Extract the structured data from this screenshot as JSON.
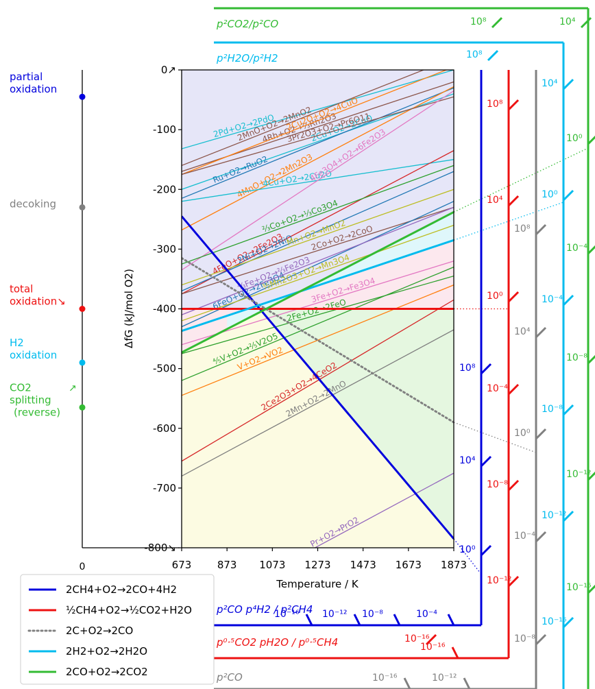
{
  "chart_data": {
    "type": "line",
    "xlabel": "Temperature / K",
    "ylabel": "ΔfG (kJ/mol O2)",
    "xlim": [
      673,
      1873
    ],
    "ylim": [
      -800,
      0
    ],
    "x_ticks": [
      "673",
      "873",
      "1073",
      "1273",
      "1473",
      "1673",
      "1873"
    ],
    "y_ticks": [
      "0↗",
      "-100",
      "-200",
      "-300",
      "-400",
      "-500",
      "-600",
      "-700",
      "-800↘"
    ],
    "grid": false,
    "colors": {
      "blue": "#0000dd",
      "red": "#ee1111",
      "gray": "#808080",
      "cyan": "#00bbee",
      "green": "#33bb33",
      "region_top": "#e6e6f8",
      "region_pink": "#fce8ee",
      "region_cyan": "#dff7fb",
      "region_green": "#e5f7e0",
      "region_yellow": "#fcfbe2"
    },
    "left_axis": {
      "labels": [
        {
          "text": "partial",
          "text2": "oxidation",
          "color": "#0000dd"
        },
        {
          "text": "decoking",
          "text2": "",
          "color": "#808080"
        },
        {
          "text": "total",
          "text2": "oxidation↘",
          "color": "#ee1111"
        },
        {
          "text": "H2",
          "text2": "oxidation",
          "color": "#00bbee"
        },
        {
          "text": "CO2",
          "text2": "splitting",
          "text3": "(reverse)",
          "color": "#33bb33",
          "arrow": "↗"
        }
      ],
      "zero_label": "0"
    },
    "series": [
      {
        "name": "2CH4+O2→2CO+4H2",
        "color": "#0000dd",
        "style": "solid",
        "x": [
          673,
          1873
        ],
        "y": [
          -245,
          -785
        ]
      },
      {
        "name": "½CH4+O2→½CO2+H2O",
        "color": "#ee1111",
        "style": "solid",
        "x": [
          673,
          1873
        ],
        "y": [
          -400,
          -400
        ]
      },
      {
        "name": "2C+O2→2CO",
        "color": "#808080",
        "style": "dotted",
        "x": [
          673,
          1873
        ],
        "y": [
          -315,
          -590
        ]
      },
      {
        "name": "2H2+O2→2H2O",
        "color": "#00bbee",
        "style": "solid",
        "x": [
          673,
          1873
        ],
        "y": [
          -437,
          -285
        ]
      },
      {
        "name": "2CO+O2→2CO2",
        "color": "#33bb33",
        "style": "solid",
        "x": [
          673,
          1873
        ],
        "y": [
          -473,
          -238
        ]
      }
    ],
    "oxide_lines": [
      {
        "label": "2Pd+O2→2PdO",
        "color": "#17becf",
        "x": [
          673,
          1873
        ],
        "y": [
          -132,
          0
        ]
      },
      {
        "label": "2MnO+O2→2MnO2",
        "color": "#8c564b",
        "x": [
          673,
          1873
        ],
        "y": [
          -160,
          20
        ]
      },
      {
        "label": "4Rh+O2→⅔Rh2O3",
        "color": "#8c564b",
        "x": [
          673,
          1873
        ],
        "y": [
          -170,
          -20
        ]
      },
      {
        "label": "2Cu2O+O2→4CuO",
        "color": "#ff7f0e",
        "x": [
          673,
          1873
        ],
        "y": [
          -175,
          5
        ]
      },
      {
        "label": "2Cu+O2→2CuO",
        "color": "#17becf",
        "x": [
          673,
          1873
        ],
        "y": [
          -200,
          -40
        ]
      },
      {
        "label": "Ru+O2→RuO2",
        "color": "#1f77b4",
        "x": [
          673,
          1873
        ],
        "y": [
          -215,
          -30
        ]
      },
      {
        "label": "4MnO+O2→2Mn2O3",
        "color": "#ff7f0e",
        "x": [
          673,
          1873
        ],
        "y": [
          -268,
          -28
        ]
      },
      {
        "label": "4Cu+O2→2Cu2O",
        "color": "#17becf",
        "x": [
          673,
          1873
        ],
        "y": [
          -220,
          -150
        ]
      },
      {
        "label": "3Pr2O3+O2→Pr6O11",
        "color": "#8c564b",
        "x": [
          673,
          1873
        ],
        "y": [
          -175,
          -45
        ]
      },
      {
        "label": "4Fe3O4+O2→6Fe2O3",
        "color": "#e377c2",
        "x": [
          673,
          1873
        ],
        "y": [
          -335,
          -35
        ]
      },
      {
        "label": "4FeO+O2→2Fe2O3",
        "color": "#d62728",
        "x": [
          673,
          1873
        ],
        "y": [
          -375,
          -135
        ]
      },
      {
        "label": "2Ni+O2→2NiO",
        "color": "#1f77b4",
        "x": [
          673,
          1873
        ],
        "y": [
          -370,
          -170
        ]
      },
      {
        "label": "⅔Co+O2→⅓Co3O4",
        "color": "#2ca02c",
        "x": [
          673,
          1873
        ],
        "y": [
          -325,
          -160
        ]
      },
      {
        "label": "Mn+O2→MnO2",
        "color": "#bcbd22",
        "x": [
          673,
          1873
        ],
        "y": [
          -360,
          -200
        ]
      },
      {
        "label": "2Co+O2→2CoO",
        "color": "#8c564b",
        "x": [
          673,
          1873
        ],
        "y": [
          -375,
          -230
        ]
      },
      {
        "label": "6FeO+O2→2Fe3O4",
        "color": "#1f77b4",
        "x": [
          673,
          1873
        ],
        "y": [
          -430,
          -220
        ]
      },
      {
        "label": "⁴⁄₃Fe+O2→⅔Fe2O3",
        "color": "#9467bd",
        "x": [
          673,
          1873
        ],
        "y": [
          -410,
          -230
        ]
      },
      {
        "label": "³⁄₂Mn2O3+O2→Mn3O4",
        "color": "#bcbd22",
        "x": [
          673,
          1873
        ],
        "y": [
          -420,
          -260
        ]
      },
      {
        "label": "2Fe+O2→2FeO",
        "color": "#2ca02c",
        "x": [
          673,
          1873
        ],
        "y": [
          -475,
          -345
        ]
      },
      {
        "label": "3Fe+O2→Fe3O4",
        "color": "#e377c2",
        "x": [
          673,
          1873
        ],
        "y": [
          -460,
          -320
        ]
      },
      {
        "label": "⁴⁄₅V+O2→⅖V2O5",
        "color": "#2ca02c",
        "x": [
          673,
          1873
        ],
        "y": [
          -520,
          -330
        ]
      },
      {
        "label": "V+O2→VO2",
        "color": "#ff7f0e",
        "x": [
          673,
          1873
        ],
        "y": [
          -545,
          -360
        ]
      },
      {
        "label": "2Ce2O3+O2→4CeO2",
        "color": "#d62728",
        "x": [
          673,
          1873
        ],
        "y": [
          -655,
          -385
        ]
      },
      {
        "label": "2Mn+O2→2MnO",
        "color": "#7f7f7f",
        "x": [
          673,
          1873
        ],
        "y": [
          -680,
          -435
        ]
      },
      {
        "label": "Pr+O2→PrO2",
        "color": "#9467bd",
        "x": [
          673,
          1873
        ],
        "y": [
          -920,
          -675
        ]
      }
    ],
    "ratio_scales": [
      {
        "label": "p²CO2/p²CO",
        "color": "#33bb33",
        "ticks": [
          "10⁸",
          "10⁴",
          "10⁰",
          "10⁻⁴",
          "10⁻⁸",
          "10⁻¹²",
          "10⁻¹⁶"
        ]
      },
      {
        "label": "p²H2O/p²H2",
        "color": "#00bbee",
        "ticks": [
          "10⁸",
          "10⁴",
          "10⁰",
          "10⁻⁴",
          "10⁻⁸",
          "10⁻¹²",
          "10⁻¹⁶"
        ]
      },
      {
        "label": "",
        "color": "#ee1111",
        "ticks": [
          "10⁸",
          "10⁴",
          "10⁰",
          "10⁻⁴",
          "10⁻⁸",
          "10⁻¹²",
          "10⁻¹⁶"
        ]
      },
      {
        "label": "",
        "color": "#808080",
        "ticks": [
          "10⁸",
          "10⁴",
          "10⁰",
          "10⁻⁴",
          "10⁻⁸",
          "10⁻¹²",
          "10⁻¹⁶"
        ]
      },
      {
        "label": "",
        "color": "#0000dd",
        "ticks": [
          "10⁸",
          "10⁴",
          "10⁰",
          "10⁻¹⁶",
          "10⁻¹²",
          "10⁻⁸",
          "10⁻⁴"
        ]
      }
    ],
    "bottom_labels": [
      {
        "text": "p²CO p⁴H2 / p²CH4",
        "color": "#0000dd"
      },
      {
        "text": "p⁰·⁵CO2 pH2O / p⁰·⁵CH4",
        "color": "#ee1111"
      },
      {
        "text": "p²CO",
        "color": "#808080"
      }
    ],
    "legend": {
      "placement": "bottom-left",
      "entries": [
        {
          "label": "2CH4+O2→2CO+4H2",
          "color": "#0000dd",
          "style": "solid"
        },
        {
          "label": "½CH4+O2→½CO2+H2O",
          "color": "#ee1111",
          "style": "solid"
        },
        {
          "label": "2C+O2→2CO",
          "color": "#808080",
          "style": "dotted"
        },
        {
          "label": "2H2+O2→2H2O",
          "color": "#00bbee",
          "style": "solid"
        },
        {
          "label": "2CO+O2→2CO2",
          "color": "#33bb33",
          "style": "solid"
        }
      ]
    }
  }
}
